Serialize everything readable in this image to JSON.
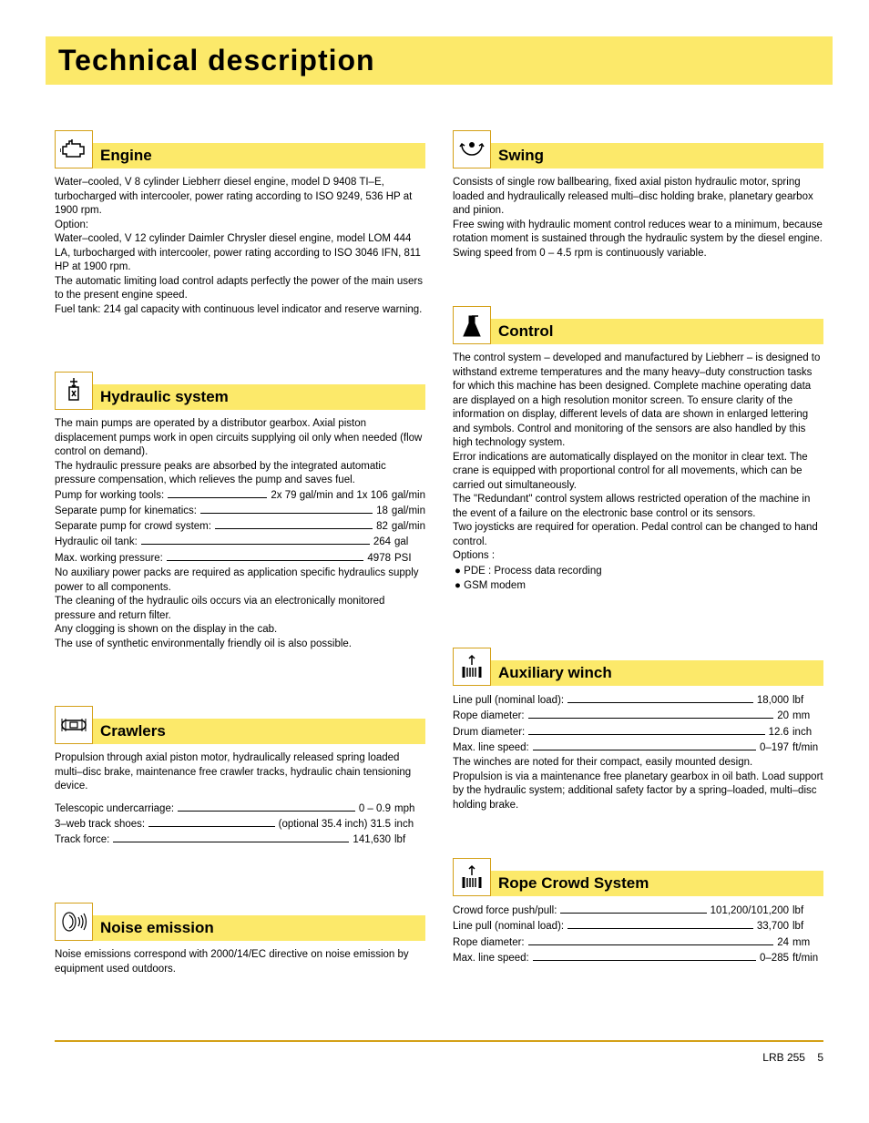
{
  "colors": {
    "highlight": "#fce96a",
    "icon_border": "#d4a017",
    "text": "#000000",
    "background": "#ffffff",
    "rule": "#d4a017"
  },
  "typography": {
    "title_fontsize": 32,
    "section_title_fontsize": 17,
    "body_fontsize": 11.5,
    "title_weight": 900,
    "body_family": "Arial"
  },
  "page_title": "Technical description",
  "left": {
    "engine": {
      "title": "Engine",
      "icon": "engine",
      "p1": "Water–cooled, V 8 cylinder Liebherr diesel engine, model D 9408 TI–E, turbocharged with intercooler, power rating according to ISO 9249, 536 HP at 1900 rpm.",
      "p2": "Option:",
      "p3": "Water–cooled, V 12 cylinder Daimler Chrysler diesel engine, model LOM 444 LA, turbocharged with intercooler, power rating according to ISO 3046 IFN, 811 HP at 1900 rpm.",
      "p4": "The automatic limiting load control adapts perfectly the power of the main users to the present engine speed.",
      "p5": "Fuel tank: 214 gal capacity with continuous level indicator and reserve warning."
    },
    "hydraulic": {
      "title": "Hydraulic system",
      "icon": "hydraulic",
      "p1": "The main pumps are operated by a distributor gearbox. Axial piston displacement pumps work in open circuits supplying oil only when needed (flow control on demand).",
      "p2": "The hydraulic pressure peaks are absorbed by the integrated automatic pressure compensation, which relieves the pump and saves fuel.",
      "specs": [
        {
          "label": "Pump for working tools:",
          "value": "2x 79  gal/min and 1x 106",
          "unit": "gal/min"
        },
        {
          "label": "Separate pump for kinematics:",
          "value": "18",
          "unit": "gal/min"
        },
        {
          "label": "Separate pump for crowd system:",
          "value": "82",
          "unit": "gal/min"
        },
        {
          "label": "Hydraulic oil tank:",
          "value": "264",
          "unit": "gal"
        },
        {
          "label": "Max. working pressure:",
          "value": "4978",
          "unit": "PSI"
        }
      ],
      "p3": "No auxiliary power packs are required as application specific hydraulics supply power to all components.",
      "p4": "The cleaning of the hydraulic oils occurs via an electronically monitored pressure and return filter.",
      "p5": "Any clogging is shown on the display in the cab.",
      "p6": "The use of synthetic environmentally friendly oil is also possible."
    },
    "crawlers": {
      "title": "Crawlers",
      "icon": "crawlers",
      "p1": "Propulsion through axial piston motor, hydraulically released spring loaded multi–disc brake, maintenance free crawler tracks, hydraulic chain tensioning device.",
      "specs": [
        {
          "label": "Telescopic undercarriage:",
          "value": "0 – 0.9",
          "unit": "mph"
        },
        {
          "label": "3–web track shoes:",
          "value": "(optional 35.4 inch) 31.5",
          "unit": "inch"
        },
        {
          "label": "Track force:",
          "value": "141,630",
          "unit": "lbf"
        }
      ]
    },
    "noise": {
      "title": "Noise emission",
      "icon": "noise",
      "p1": "Noise emissions correspond with 2000/14/EC directive on noise emission by equipment used outdoors."
    }
  },
  "right": {
    "swing": {
      "title": "Swing",
      "icon": "swing",
      "p1": "Consists of single row ballbearing, fixed axial piston hydraulic motor, spring loaded and hydraulically released multi–disc holding brake, planetary gearbox and pinion.",
      "p2": "Free swing with hydraulic moment control reduces wear to a minimum, because rotation moment is sustained through the hydraulic system by the diesel engine.",
      "p3": "Swing speed from  0 – 4.5 rpm is continuously variable."
    },
    "control": {
      "title": "Control",
      "icon": "control",
      "p1": "The control system – developed and manufactured by Liebherr – is designed to withstand extreme temperatures and the many heavy–duty construction tasks for which this machine has been designed. Complete machine operating data are displayed on a high resolution monitor screen. To ensure clarity of the information on display, different levels of data are shown in enlarged lettering and symbols. Control and monitoring of the sensors are also handled by this high technology system.",
      "p2": "Error indications are automatically displayed on the monitor in clear text. The crane is equipped with proportional control for all movements, which can be carried out simultaneously.",
      "p3": "The \"Redundant\" control system allows restricted operation of the machine in the event of a failure on the electronic base control or its sensors.",
      "p4": "Two joysticks are required for operation. Pedal control can be changed to hand control.",
      "p5": "Options :",
      "options": [
        "PDE : Process data recording",
        "GSM modem"
      ]
    },
    "aux_winch": {
      "title": "Auxiliary winch",
      "icon": "winch",
      "specs": [
        {
          "label": "Line pull (nominal load):",
          "value": "18,000",
          "unit": "lbf"
        },
        {
          "label": "Rope diameter:",
          "value": "20",
          "unit": "mm"
        },
        {
          "label": "Drum diameter:",
          "value": "12.6",
          "unit": "inch"
        },
        {
          "label": "Max. line speed:",
          "value": "0–197",
          "unit": "ft/min"
        }
      ],
      "p1": "The winches are noted for their compact, easily mounted design.",
      "p2": "Propulsion is via a maintenance free planetary gearbox in oil bath. Load support by the hydraulic system; additional safety factor by a spring–loaded, multi–disc holding brake."
    },
    "rope_crowd": {
      "title": "Rope Crowd System",
      "icon": "winch",
      "specs": [
        {
          "label": "Crowd force push/pull:",
          "value": "101,200/101,200",
          "unit": "lbf"
        },
        {
          "label": "Line pull (nominal load):",
          "value": "33,700",
          "unit": "lbf"
        },
        {
          "label": "Rope diameter:",
          "value": "24",
          "unit": "mm"
        },
        {
          "label": "Max. line speed:",
          "value": "0–285",
          "unit": "ft/min"
        }
      ]
    }
  },
  "footer": {
    "model": "LRB 255",
    "page": "5"
  }
}
